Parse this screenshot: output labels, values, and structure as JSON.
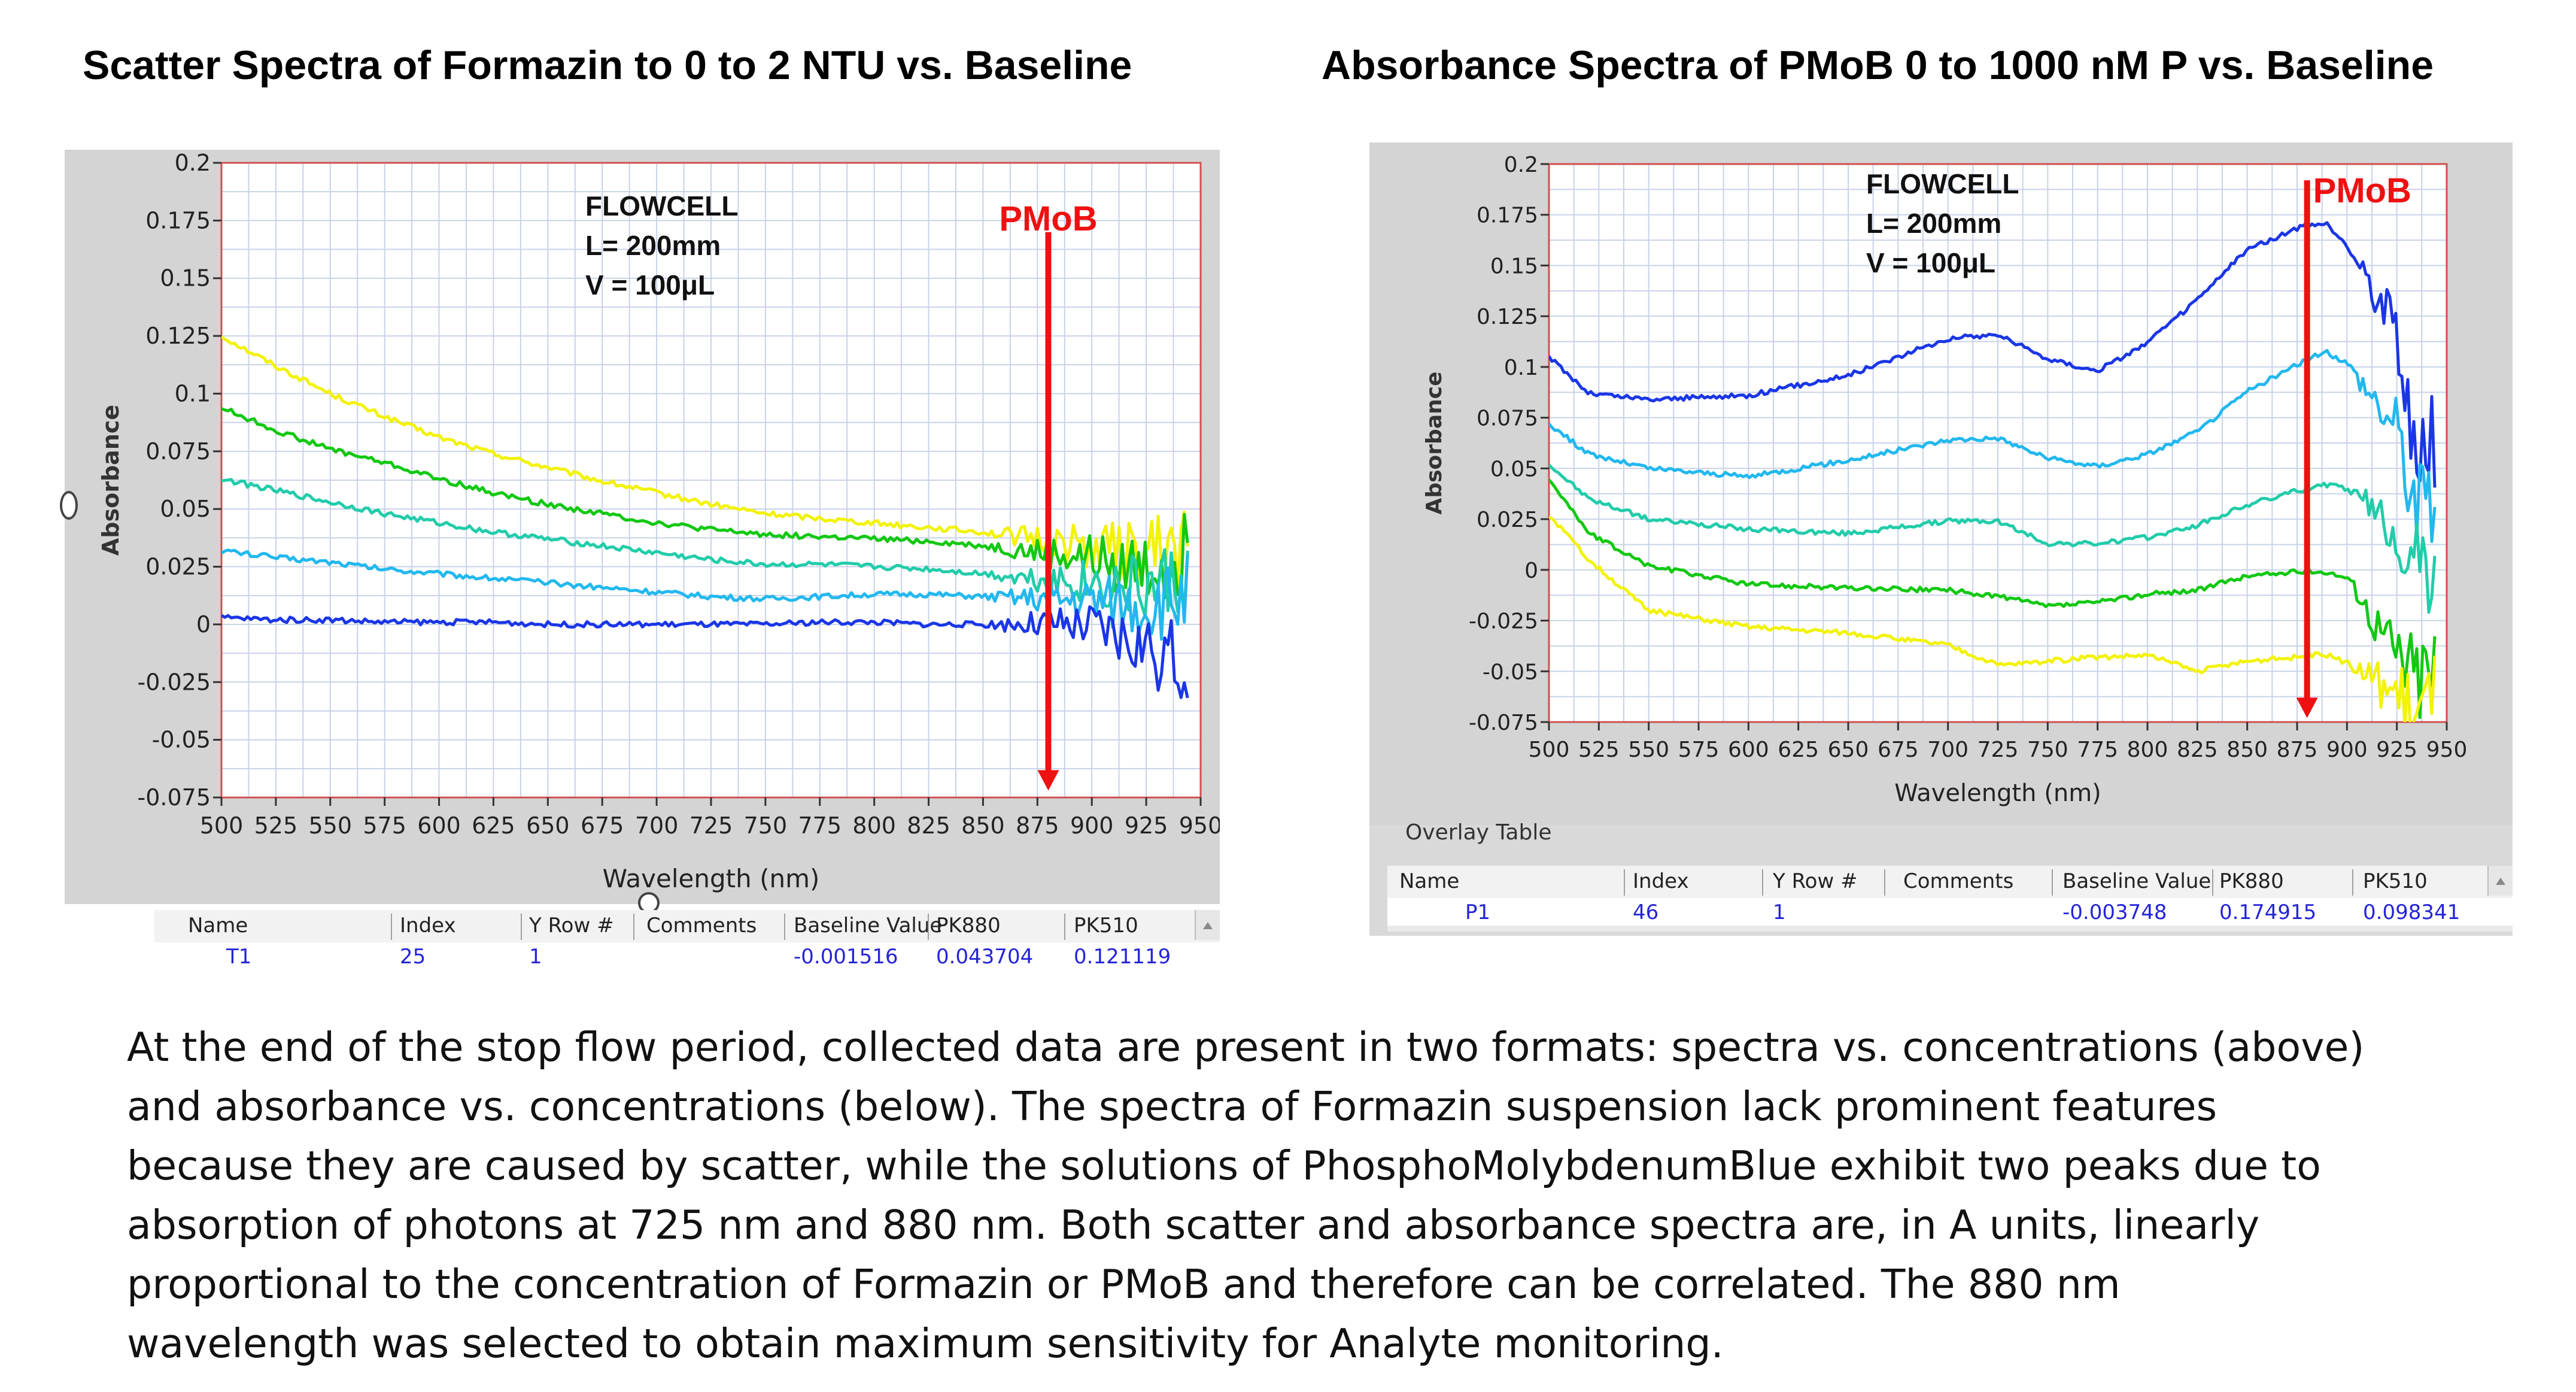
{
  "titles": {
    "left": "Scatter Spectra of Formazin to 0 to 2 NTU  vs. Baseline",
    "right": "Absorbance Spectra of PMoB 0 to 1000 nM P vs. Baseline"
  },
  "colors": {
    "plot_bg": "#ffffff",
    "panel_bg": "#d4d4d4",
    "grid": "#c8d2e8",
    "frame": "#d05050",
    "arrow": "#ee1111",
    "series": [
      "#f2f20a",
      "#12c812",
      "#22ccaa",
      "#22b8ee",
      "#1a36e6"
    ]
  },
  "chart_data": [
    {
      "type": "line",
      "title": "Scatter Spectra of Formazin to 0 to 2 NTU  vs. Baseline",
      "xlabel": "Wavelength (nm)",
      "ylabel": "Absorbance",
      "xlim": [
        500,
        950
      ],
      "ylim": [
        -0.075,
        0.2
      ],
      "xticks": [
        500,
        525,
        550,
        575,
        600,
        625,
        650,
        675,
        700,
        725,
        750,
        775,
        800,
        825,
        850,
        875,
        900,
        925,
        950
      ],
      "yticks": [
        -0.075,
        -0.05,
        -0.025,
        0,
        0.025,
        0.05,
        0.075,
        0.1,
        0.125,
        0.15,
        0.175,
        0.2
      ],
      "ytick_labels": [
        "-0.075",
        "-0.05",
        "-0.025",
        "0",
        "0.025",
        "0.05",
        "0.075",
        "0.1",
        "0.125",
        "0.15",
        "0.175",
        "0.2"
      ],
      "grid": true,
      "annotation_lines": [
        "FLOWCELL",
        "L= 200mm",
        "V = 100μL"
      ],
      "marker": {
        "label": "PMoB",
        "x": 880,
        "y_from": 0.17,
        "y_to": -0.072
      },
      "noise_from": 850,
      "noise_amp": 0.006,
      "series": [
        {
          "name": "yellow",
          "color": "#f2f20a",
          "x": [
            500,
            525,
            550,
            575,
            600,
            625,
            650,
            675,
            700,
            725,
            750,
            775,
            800,
            825,
            850,
            875,
            900,
            925,
            945
          ],
          "values": [
            0.125,
            0.112,
            0.1,
            0.09,
            0.081,
            0.074,
            0.068,
            0.062,
            0.057,
            0.052,
            0.048,
            0.046,
            0.044,
            0.042,
            0.04,
            0.037,
            0.034,
            0.03,
            0.035
          ]
        },
        {
          "name": "green",
          "color": "#12c812",
          "x": [
            500,
            525,
            550,
            575,
            600,
            625,
            650,
            675,
            700,
            725,
            750,
            775,
            800,
            825,
            850,
            875,
            900,
            925,
            945
          ],
          "values": [
            0.094,
            0.084,
            0.076,
            0.07,
            0.063,
            0.057,
            0.052,
            0.048,
            0.044,
            0.041,
            0.039,
            0.038,
            0.037,
            0.036,
            0.034,
            0.031,
            0.028,
            0.024,
            0.03
          ]
        },
        {
          "name": "teal",
          "color": "#22ccaa",
          "x": [
            500,
            525,
            550,
            575,
            600,
            625,
            650,
            675,
            700,
            725,
            750,
            775,
            800,
            825,
            850,
            875,
            900,
            925,
            945
          ],
          "values": [
            0.063,
            0.058,
            0.053,
            0.048,
            0.044,
            0.04,
            0.037,
            0.034,
            0.031,
            0.028,
            0.026,
            0.026,
            0.025,
            0.024,
            0.022,
            0.02,
            0.018,
            0.015,
            0.02
          ]
        },
        {
          "name": "light blue",
          "color": "#22b8ee",
          "x": [
            500,
            525,
            550,
            575,
            600,
            625,
            650,
            675,
            700,
            725,
            750,
            775,
            800,
            825,
            850,
            875,
            900,
            925,
            945
          ],
          "values": [
            0.032,
            0.029,
            0.027,
            0.024,
            0.022,
            0.02,
            0.018,
            0.016,
            0.014,
            0.012,
            0.011,
            0.012,
            0.013,
            0.013,
            0.012,
            0.011,
            0.01,
            0.008,
            0.012
          ]
        },
        {
          "name": "blue",
          "color": "#1a36e6",
          "x": [
            500,
            525,
            550,
            575,
            600,
            625,
            650,
            675,
            700,
            725,
            750,
            775,
            800,
            825,
            850,
            875,
            900,
            925,
            945
          ],
          "values": [
            0.003,
            0.002,
            0.002,
            0.001,
            0.001,
            0.001,
            0.0,
            0.0,
            0.0,
            0.0,
            0.0,
            0.001,
            0.001,
            0.0,
            0.0,
            0.0,
            -0.002,
            -0.01,
            -0.02
          ]
        }
      ],
      "table": {
        "headers": [
          "Name",
          "Index",
          "Y Row #",
          "Comments",
          "Baseline Value",
          "PK880",
          "PK510"
        ],
        "row": [
          "T1",
          "25",
          "1",
          "",
          "-0.001516",
          "0.043704",
          "0.121119"
        ]
      }
    },
    {
      "type": "line",
      "title": "Absorbance Spectra of PMoB 0 to 1000 nM P vs. Baseline",
      "xlabel": "Wavelength (nm)",
      "ylabel": "Absorbance",
      "xlim": [
        500,
        950
      ],
      "ylim": [
        -0.075,
        0.2
      ],
      "xticks": [
        500,
        525,
        550,
        575,
        600,
        625,
        650,
        675,
        700,
        725,
        750,
        775,
        800,
        825,
        850,
        875,
        900,
        925,
        950
      ],
      "yticks": [
        -0.075,
        -0.05,
        -0.025,
        0,
        0.025,
        0.05,
        0.075,
        0.1,
        0.125,
        0.15,
        0.175,
        0.2
      ],
      "ytick_labels": [
        "-0.075",
        "-0.05",
        "-0.025",
        "0",
        "0.025",
        "0.05",
        "0.075",
        "0.1",
        "0.125",
        "0.15",
        "0.175",
        "0.2"
      ],
      "grid": true,
      "annotation_lines": [
        "FLOWCELL",
        "L= 200mm",
        "V = 100μL"
      ],
      "marker": {
        "label": "PMoB",
        "x": 880,
        "y_from": 0.192,
        "y_to": -0.073
      },
      "noise_from": 900,
      "noise_amp": 0.01,
      "series": [
        {
          "name": "blue",
          "color": "#1a36e6",
          "x": [
            500,
            520,
            550,
            600,
            650,
            700,
            725,
            750,
            775,
            800,
            825,
            850,
            875,
            880,
            890,
            900,
            925,
            935,
            945
          ],
          "values": [
            0.105,
            0.087,
            0.084,
            0.086,
            0.096,
            0.114,
            0.116,
            0.104,
            0.098,
            0.112,
            0.133,
            0.158,
            0.168,
            0.17,
            0.17,
            0.16,
            0.12,
            0.05,
            0.06
          ]
        },
        {
          "name": "light blue",
          "color": "#22b8ee",
          "x": [
            500,
            520,
            550,
            600,
            650,
            700,
            725,
            750,
            775,
            800,
            825,
            850,
            875,
            880,
            890,
            900,
            925,
            935,
            945
          ],
          "values": [
            0.072,
            0.057,
            0.05,
            0.046,
            0.054,
            0.064,
            0.065,
            0.055,
            0.051,
            0.057,
            0.068,
            0.088,
            0.101,
            0.104,
            0.107,
            0.102,
            0.07,
            0.03,
            0.04
          ]
        },
        {
          "name": "teal",
          "color": "#22ccaa",
          "x": [
            500,
            520,
            550,
            600,
            650,
            700,
            725,
            750,
            775,
            800,
            825,
            850,
            875,
            880,
            890,
            900,
            925,
            935,
            945
          ],
          "values": [
            0.052,
            0.035,
            0.025,
            0.02,
            0.018,
            0.024,
            0.024,
            0.013,
            0.013,
            0.016,
            0.022,
            0.032,
            0.039,
            0.04,
            0.042,
            0.04,
            0.02,
            0.0,
            0.005
          ]
        },
        {
          "name": "green",
          "color": "#12c812",
          "x": [
            500,
            520,
            550,
            600,
            650,
            700,
            725,
            750,
            775,
            800,
            825,
            850,
            875,
            880,
            890,
            900,
            925,
            935,
            945
          ],
          "values": [
            0.045,
            0.018,
            0.002,
            -0.007,
            -0.009,
            -0.01,
            -0.013,
            -0.018,
            -0.016,
            -0.012,
            -0.01,
            -0.003,
            -0.001,
            -0.001,
            -0.001,
            -0.004,
            -0.04,
            -0.05,
            -0.045
          ]
        },
        {
          "name": "yellow",
          "color": "#f2f20a",
          "x": [
            500,
            520,
            550,
            600,
            650,
            700,
            725,
            750,
            775,
            800,
            825,
            850,
            875,
            880,
            890,
            900,
            925,
            935,
            945
          ],
          "values": [
            0.027,
            0.005,
            -0.02,
            -0.028,
            -0.031,
            -0.037,
            -0.047,
            -0.045,
            -0.043,
            -0.042,
            -0.05,
            -0.045,
            -0.043,
            -0.042,
            -0.042,
            -0.046,
            -0.06,
            -0.07,
            -0.065
          ]
        }
      ],
      "table": {
        "overlay_label": "Overlay Table",
        "headers": [
          "Name",
          "Index",
          "Y Row #",
          "Comments",
          "Baseline Value",
          "PK880",
          "PK510"
        ],
        "row": [
          "P1",
          "46",
          "1",
          "",
          "-0.003748",
          "0.174915",
          "0.098341"
        ]
      }
    }
  ],
  "caption_lines": [
    "At the end of the stop flow period, collected data are present in two formats: spectra vs. concentrations (above)",
    "and absorbance vs. concentrations (below). The spectra of Formazin suspension lack prominent features",
    "because they are caused by scatter, while the solutions of PhosphoMolybdenumBlue exhibit two peaks due to",
    "absorption of photons at 725 nm and 880 nm. Both scatter and absorbance spectra are, in A units, linearly",
    "proportional to the concentration of Formazin or PMoB and therefore can be correlated. The 880 nm",
    "wavelength was selected to obtain maximum sensitivity for Analyte monitoring."
  ]
}
